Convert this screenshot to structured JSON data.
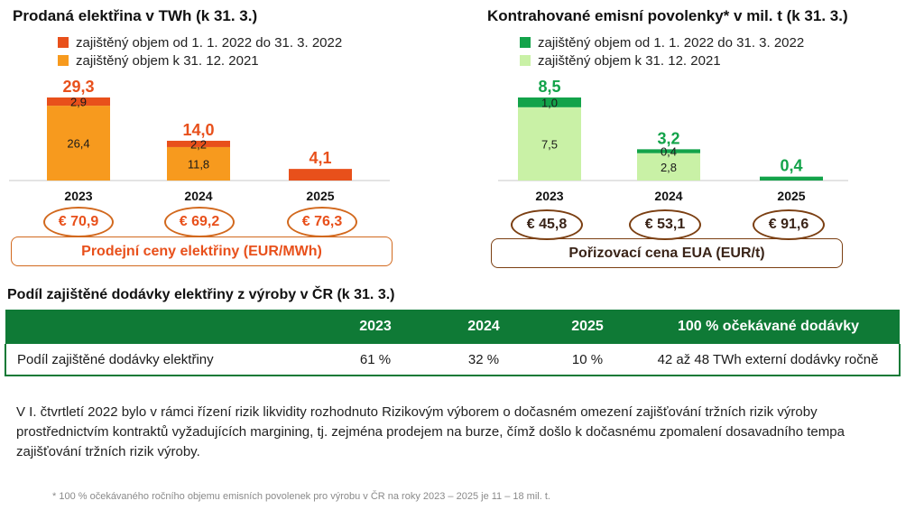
{
  "chart_data": [
    {
      "type": "bar",
      "title": "Prodaná elektřina v TWh (k 31. 3.)",
      "categories": [
        "2023",
        "2024",
        "2025"
      ],
      "series": [
        {
          "name": "zajištěný objem k 31. 12. 2021",
          "color": "#f79a1e",
          "values": [
            26.4,
            11.8,
            0
          ],
          "labels": [
            "26,4",
            "11,8",
            ""
          ]
        },
        {
          "name": "zajištěný objem od 1. 1. 2022 do 31. 3. 2022",
          "color": "#e8501b",
          "values": [
            2.9,
            2.2,
            4.1
          ],
          "labels": [
            "2,9",
            "2,2",
            ""
          ]
        }
      ],
      "totals": [
        "29,3",
        "14,0",
        "4,1"
      ],
      "total_color": "#e8501b",
      "ylim": [
        0,
        29.3
      ],
      "legend": "top-left",
      "prices": [
        "€ 70,9",
        "€ 69,2",
        "€ 76,3"
      ],
      "price_label": "Prodejní ceny elektřiny (EUR/MWh)",
      "price_color": "#d2691e",
      "price_text_color": "#e8501b"
    },
    {
      "type": "bar",
      "title": "Kontrahované emisní povolenky* v mil. t (k 31. 3.)",
      "categories": [
        "2023",
        "2024",
        "2025"
      ],
      "series": [
        {
          "name": "zajištěný objem k 31. 12. 2021",
          "color": "#c9f1a6",
          "values": [
            7.5,
            2.8,
            0
          ],
          "labels": [
            "7,5",
            "2,8",
            ""
          ]
        },
        {
          "name": "zajištěný objem od 1. 1. 2022 do 31. 3. 2022",
          "color": "#13a34a",
          "values": [
            1.0,
            0.4,
            0.4
          ],
          "labels": [
            "1,0",
            "0,4",
            ""
          ]
        }
      ],
      "totals": [
        "8,5",
        "3,2",
        "0,4"
      ],
      "total_color": "#13a34a",
      "ylim": [
        0,
        8.5
      ],
      "legend": "top-left",
      "prices": [
        "€ 45,8",
        "€ 53,1",
        "€ 91,6"
      ],
      "price_label": "Pořizovací cena EUA (EUR/t)",
      "price_color": "#7b3f12",
      "price_text_color": "#3a2418"
    }
  ],
  "share_table": {
    "title": "Podíl zajištěné dodávky elektřiny z výroby v ČR (k 31. 3.)",
    "headers": [
      "",
      "2023",
      "2024",
      "2025",
      "100 % očekávané dodávky"
    ],
    "row": [
      "Podíl zajištěné dodávky elektřiny",
      "61 %",
      "32 %",
      "10 %",
      "42 až 48 TWh externí dodávky ročně"
    ]
  },
  "note": "V I. čtvrtletí 2022 bylo v rámci řízení rizik likvidity rozhodnuto Rizikovým výborem o dočasném omezení zajišťování tržních rizik výroby prostřednictvím kontraktů vyžadujících margining, tj. zejména prodejem na burze, čímž došlo k dočasnému zpomalení dosavadního tempa zajišťování tržních rizik výroby.",
  "footnote": "* 100 % očekávaného ročního objemu emisních povolenek pro výrobu v ČR na roky 2023 – 2025 je 11 – 18 mil. t."
}
